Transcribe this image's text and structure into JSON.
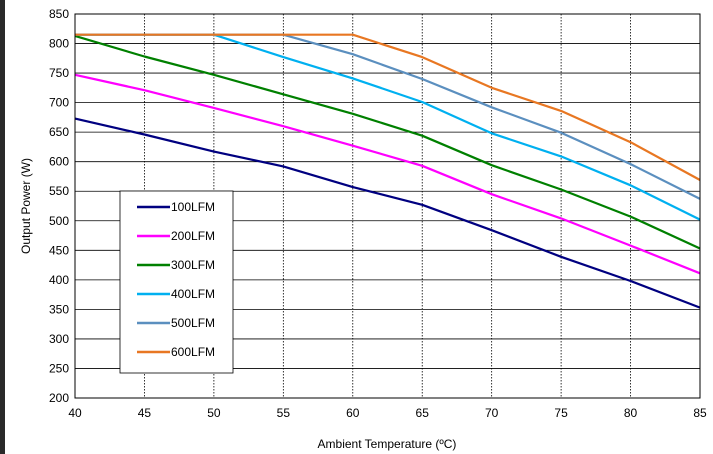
{
  "chart_data": {
    "type": "line",
    "title": "",
    "xlabel": "Ambient Temperature (ºC)",
    "ylabel": "Output  Power (W)",
    "x": [
      40,
      45,
      50,
      55,
      60,
      65,
      70,
      75,
      80,
      85
    ],
    "xlim": [
      40,
      85
    ],
    "ylim": [
      200,
      850
    ],
    "xticks": [
      "40",
      "45",
      "50",
      "55",
      "60",
      "65",
      "70",
      "75",
      "80",
      "85"
    ],
    "yticks": [
      "200",
      "250",
      "300",
      "350",
      "400",
      "450",
      "500",
      "550",
      "600",
      "650",
      "700",
      "750",
      "800",
      "850"
    ],
    "grid": true,
    "legend_position": "lower-left",
    "series": [
      {
        "name": "100LFM",
        "color": "#000080",
        "values": [
          673,
          646,
          617,
          592,
          557,
          527,
          484,
          439,
          398,
          353
        ]
      },
      {
        "name": "200LFM",
        "color": "#ff00ff",
        "values": [
          747,
          721,
          691,
          660,
          627,
          593,
          545,
          504,
          458,
          411
        ]
      },
      {
        "name": "300LFM",
        "color": "#008000",
        "values": [
          813,
          778,
          747,
          714,
          681,
          644,
          594,
          553,
          507,
          453
        ]
      },
      {
        "name": "400LFM",
        "color": "#00b0f0",
        "values": [
          815,
          815,
          815,
          777,
          741,
          701,
          648,
          609,
          560,
          502
        ]
      },
      {
        "name": "500LFM",
        "color": "#5b8fbf",
        "values": [
          815,
          815,
          815,
          815,
          782,
          740,
          692,
          649,
          596,
          537
        ]
      },
      {
        "name": "600LFM",
        "color": "#e87722",
        "values": [
          815,
          815,
          815,
          815,
          815,
          777,
          725,
          686,
          633,
          569
        ]
      }
    ]
  }
}
